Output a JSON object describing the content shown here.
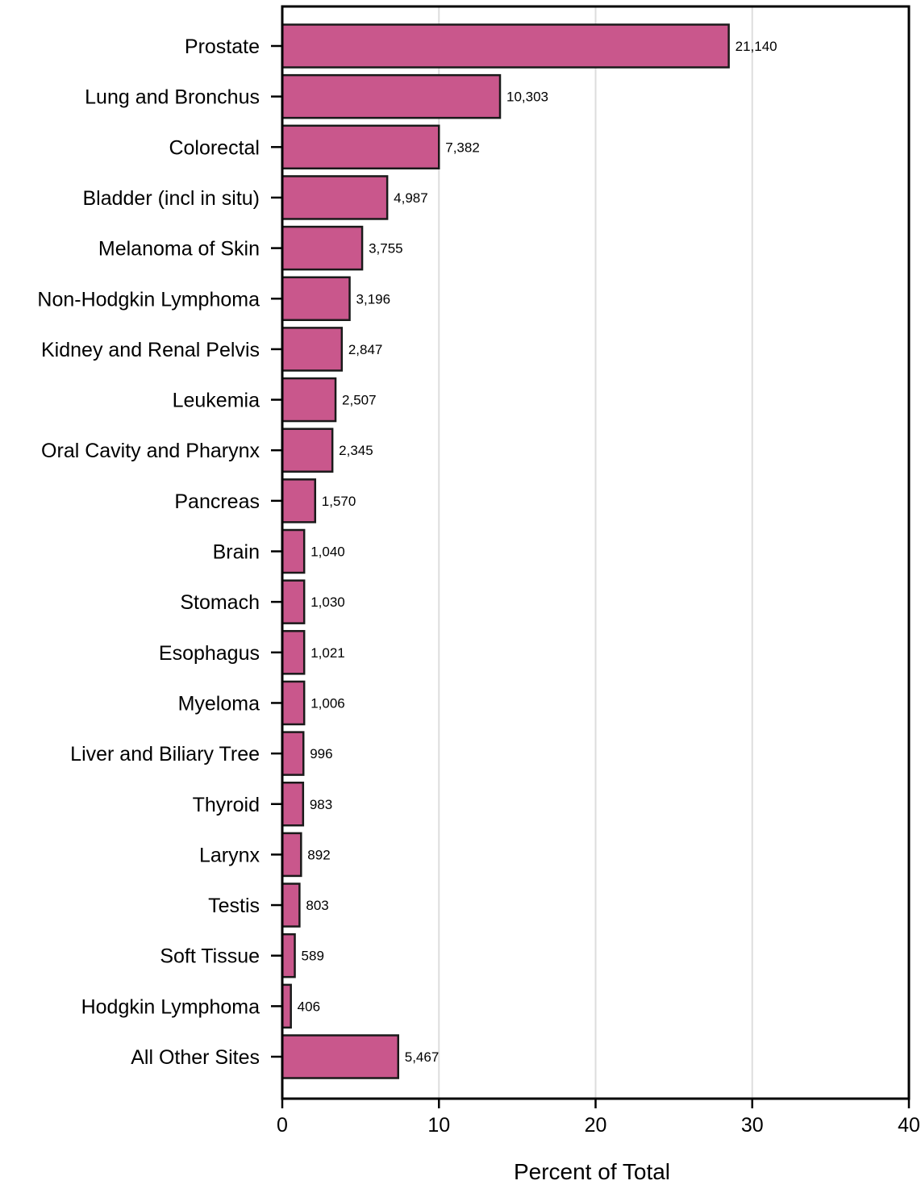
{
  "chart_data": {
    "type": "bar",
    "orientation": "horizontal",
    "xlabel": "Percent of Total",
    "ylabel": "",
    "xlim": [
      0,
      40
    ],
    "xticks": [
      0,
      10,
      20,
      30,
      40
    ],
    "grid": "vertical",
    "colors": {
      "bar": "#c9578c",
      "bar_edge": "#1a1a1a",
      "grid": "#dddddd"
    },
    "categories": [
      "Prostate",
      "Lung and Bronchus",
      "Colorectal",
      "Bladder (incl in situ)",
      "Melanoma of Skin",
      "Non-Hodgkin Lymphoma",
      "Kidney and Renal Pelvis",
      "Leukemia",
      "Oral Cavity and Pharynx",
      "Pancreas",
      "Brain",
      "Stomach",
      "Esophagus",
      "Myeloma",
      "Liver and Biliary Tree",
      "Thyroid",
      "Larynx",
      "Testis",
      "Soft Tissue",
      "Hodgkin Lymphoma",
      "All Other Sites"
    ],
    "values": [
      28.5,
      13.9,
      10.0,
      6.7,
      5.1,
      4.3,
      3.8,
      3.4,
      3.2,
      2.1,
      1.4,
      1.4,
      1.4,
      1.4,
      1.35,
      1.33,
      1.2,
      1.1,
      0.8,
      0.55,
      7.4
    ],
    "labels": [
      "21,140",
      "10,303",
      "7,382",
      "4,987",
      "3,755",
      "3,196",
      "2,847",
      "2,507",
      "2,345",
      "1,570",
      "1,040",
      "1,030",
      "1,021",
      "1,006",
      "996",
      "983",
      "892",
      "803",
      "589",
      "406",
      "5,467"
    ]
  }
}
